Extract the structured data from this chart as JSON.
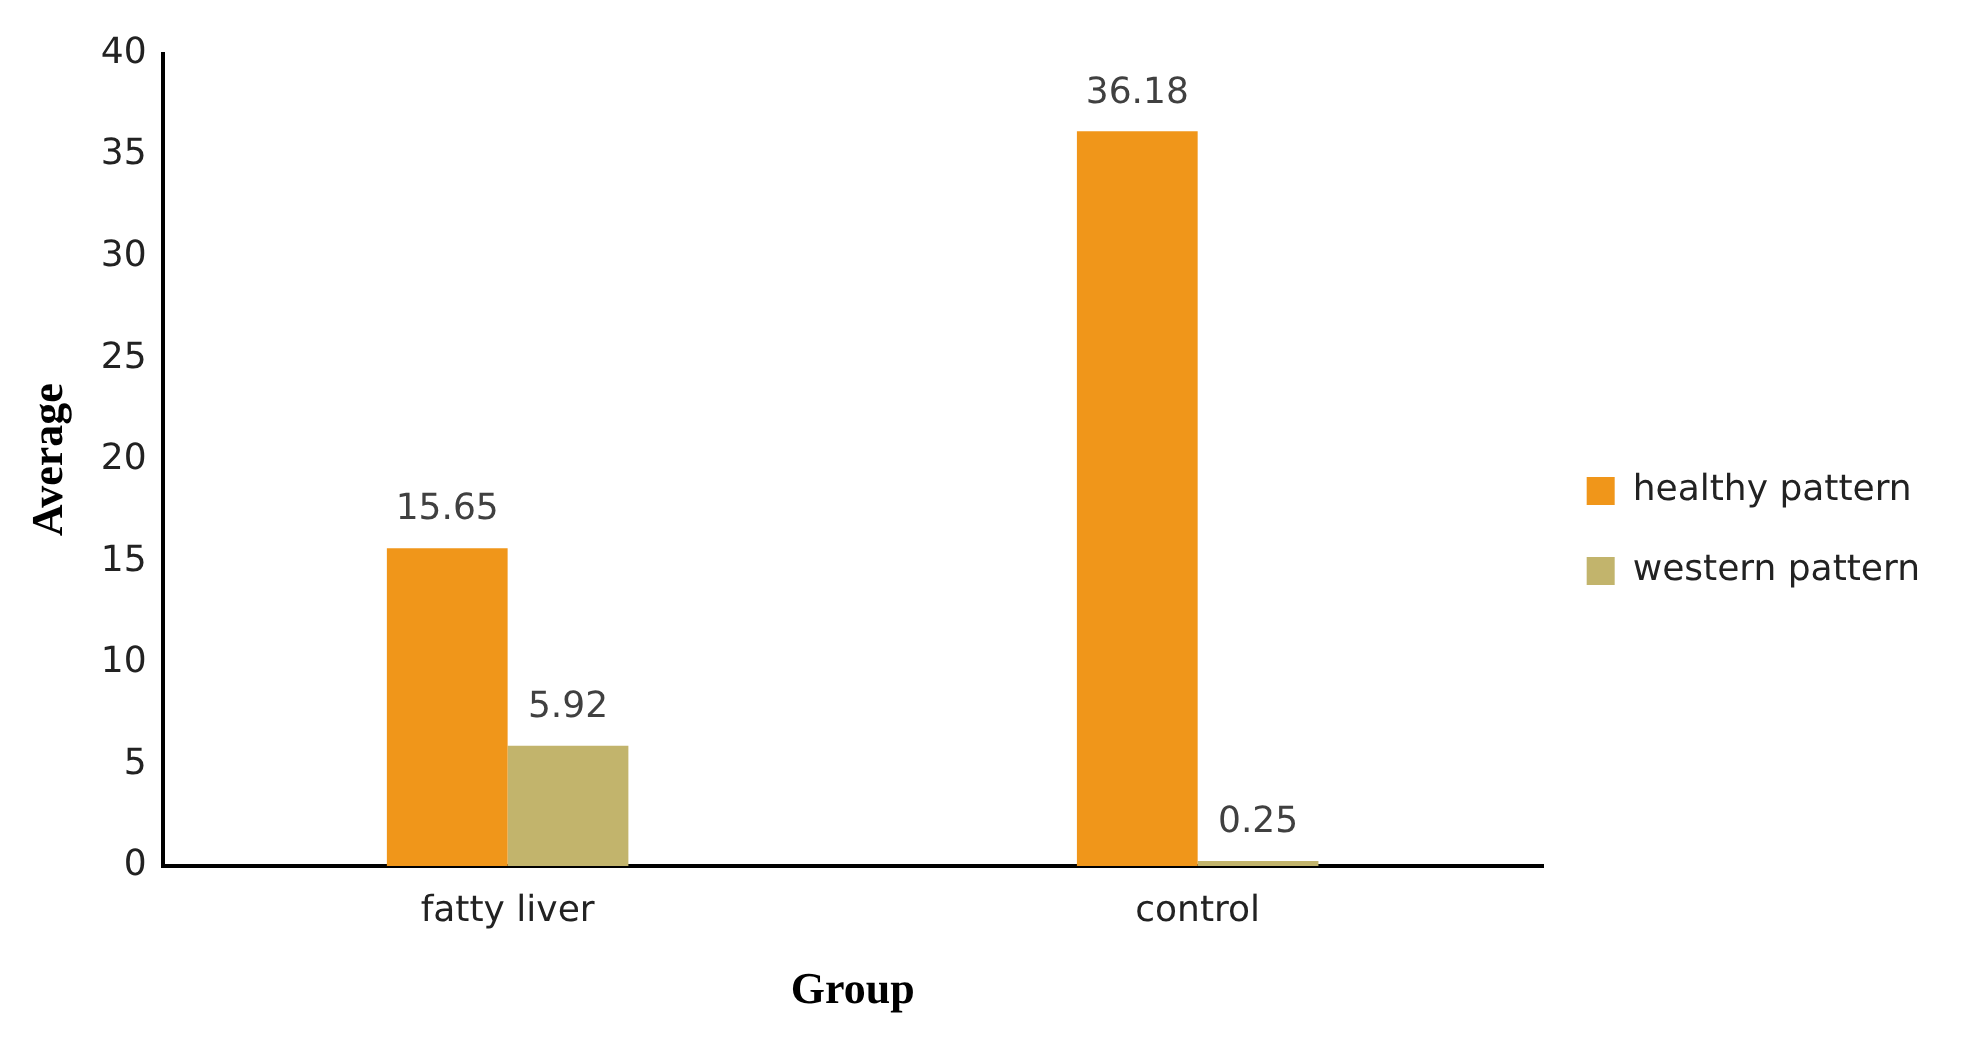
{
  "chart_data": {
    "type": "bar",
    "xlabel": "Group",
    "ylabel": "Average",
    "categories": [
      "fatty liver",
      "control"
    ],
    "series": [
      {
        "name": "healthy pattern",
        "color": "#f0961a",
        "values": [
          15.65,
          36.18
        ]
      },
      {
        "name": "western pattern",
        "color": "#c2b46c",
        "values": [
          5.92,
          0.25
        ]
      }
    ],
    "ylim": [
      0,
      40
    ],
    "yticks": [
      0,
      5,
      10,
      15,
      20,
      25,
      30,
      35,
      40
    ],
    "grid": false,
    "legend": "right",
    "data_labels": true
  }
}
